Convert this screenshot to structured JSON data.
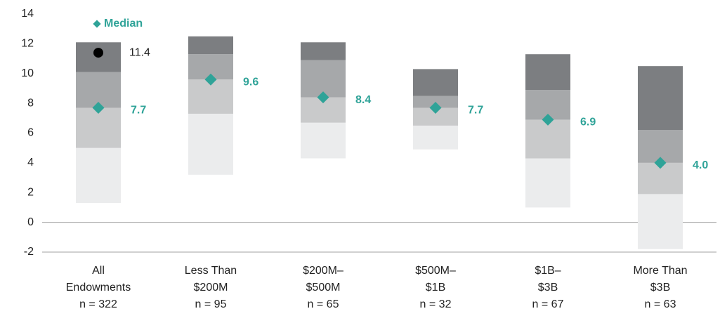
{
  "chart_data": {
    "type": "range_bar",
    "categories": [
      [
        "All",
        "Endowments"
      ],
      [
        "Less Than",
        "$200M"
      ],
      [
        "$200M–",
        "$500M"
      ],
      [
        "$500M–",
        "$1B"
      ],
      [
        "$1B–",
        "$3B"
      ],
      [
        "More Than",
        "$3B"
      ]
    ],
    "n_labels": [
      "n = 322",
      "n = 95",
      "n = 65",
      "n = 32",
      "n = 67",
      "n = 63"
    ],
    "low": [
      1.3,
      3.2,
      4.3,
      4.9,
      1.0,
      -1.8
    ],
    "q1": [
      5.0,
      7.3,
      6.7,
      6.5,
      4.3,
      1.9
    ],
    "median": [
      7.7,
      9.6,
      8.4,
      7.7,
      6.9,
      4.0
    ],
    "median_labels": [
      "7.7",
      "9.6",
      "8.4",
      "7.7",
      "6.9",
      "4.0"
    ],
    "q3": [
      10.1,
      11.3,
      10.9,
      8.5,
      8.9,
      6.2
    ],
    "high": [
      12.1,
      12.5,
      12.1,
      10.3,
      11.3,
      10.5
    ],
    "segment_colors": [
      "#ebeced",
      "#c9cacb",
      "#a6a8aa",
      "#7c7e81"
    ],
    "median_color": "#2fa398",
    "legend": "Median",
    "highlight": {
      "category": 0,
      "value": 11.4,
      "color": "#000000"
    },
    "ylim": [
      -2,
      14
    ],
    "yticks": [
      -2,
      0,
      2,
      4,
      6,
      8,
      10,
      12,
      14
    ]
  }
}
